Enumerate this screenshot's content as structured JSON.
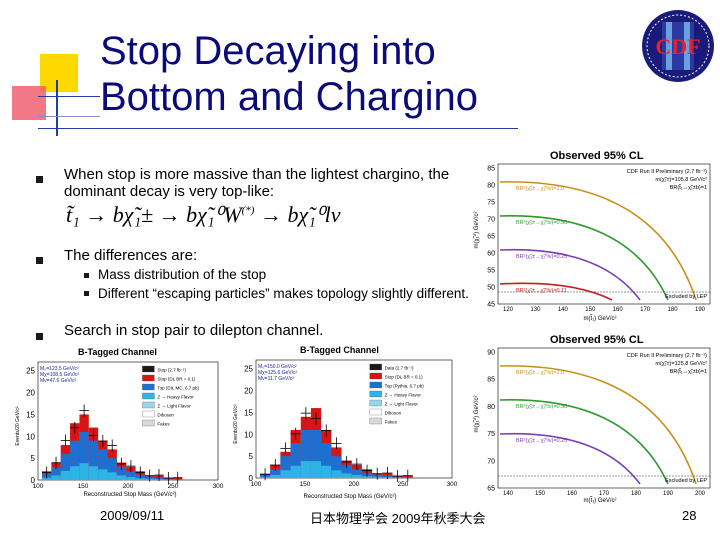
{
  "slide": {
    "title_line1": "Stop Decaying into",
    "title_line2": "Bottom and Chargino",
    "bullet1": "When stop is more massive than the lightest chargino, the dominant decay is very top-like:",
    "bullet2": "The differences are:",
    "sub1": "Mass distribution of the stop",
    "sub2": "Different “escaping particles” makes topology slightly different.",
    "bullet3": "Search in stop pair to dilepton channel."
  },
  "footer": {
    "date": "2009/09/11",
    "venue": "日本物理学会 2009年秋季大会",
    "page": "28"
  },
  "logo": {
    "text": "CDF"
  },
  "formula": {
    "p1": "t̃₁ → bχ̃₁± → bχ̃₁⁰W",
    "sup": "(*)",
    "p2": "→ bχ̃₁⁰lν"
  },
  "histograms": [
    {
      "title": "B-Tagged Channel",
      "ylabel": "Events/20 GeV/c²",
      "xlabel": "Reconstructed Stop Mass (GeV/c²)",
      "info": [
        "M₀=123.5 GeV/c²",
        "Mχ=108.5 GeV/c²",
        "Mν=47.6 GeV/c²"
      ],
      "ylim": [
        0,
        27
      ],
      "xlim": [
        100,
        300
      ],
      "yticks": [
        "0",
        "5",
        "10",
        "15",
        "20",
        "25"
      ],
      "xticks": [
        "100",
        "150",
        "200",
        "250",
        "300"
      ],
      "legend": [
        {
          "label": "Stop (2.7 fb⁻¹)",
          "color": "#1a1a1a"
        },
        {
          "label": "Stop (DL BR = 0.1)",
          "color": "#d81414"
        },
        {
          "label": "Top (DIL MC, 6.7 pb)",
          "color": "#1f6fd1"
        },
        {
          "label": "Z → Heavy Flavor",
          "color": "#2db4e6"
        },
        {
          "label": "Z → Light Flavor",
          "color": "#9ad4f0"
        },
        {
          "label": "Diboson",
          "color": "#ffffff"
        },
        {
          "label": "Fakes",
          "color": "#d8d8d8"
        }
      ],
      "bins_top": [
        2,
        4,
        8,
        13,
        15,
        12,
        9,
        7,
        4,
        3,
        2,
        1,
        1,
        0.5,
        0.5
      ],
      "bins_blue": [
        1.5,
        3,
        6,
        9,
        11,
        9,
        7,
        5,
        3,
        2,
        1.2,
        0.8,
        0.6,
        0.3,
        0.2
      ]
    },
    {
      "title": "B-Tagged Channel",
      "ylabel": "Events/20 GeV/c²",
      "xlabel": "Reconstructed Stop Mass (GeV/c²)",
      "info": [
        "M₀=150.0 GeV/c²",
        "Mχ=125.6 GeV/c²",
        "Mν=11.7 GeV/c²"
      ],
      "ylim": [
        0,
        27
      ],
      "xlim": [
        100,
        300
      ],
      "yticks": [
        "0",
        "5",
        "10",
        "15",
        "20",
        "25"
      ],
      "xticks": [
        "100",
        "150",
        "200",
        "250",
        "300"
      ],
      "legend": [
        {
          "label": "Data (2.7 fb⁻¹)",
          "color": "#1a1a1a"
        },
        {
          "label": "Stop (DL BR = 0.1)",
          "color": "#d81414"
        },
        {
          "label": "Top (Pythia, 6.7 pb)",
          "color": "#1f6fd1"
        },
        {
          "label": "Z → Heavy Flavor",
          "color": "#2db4e6"
        },
        {
          "label": "Z → Light Flavor",
          "color": "#9ad4f0"
        },
        {
          "label": "Diboson",
          "color": "#ffffff"
        },
        {
          "label": "Fakes",
          "color": "#d8d8d8"
        }
      ],
      "bins_top": [
        1,
        3,
        6,
        11,
        14,
        16,
        11,
        7,
        4,
        3,
        2,
        1,
        1,
        0.5,
        0.5
      ],
      "bins_blue": [
        0.8,
        2,
        5,
        8,
        11,
        11,
        8,
        5,
        3,
        2,
        1.2,
        0.8,
        0.6,
        0.3,
        0.2
      ]
    }
  ],
  "exclusion_plots": [
    {
      "title": "Observed 95% CL",
      "header": "CDF Run II Preliminary (2.7 fb⁻¹)",
      "mass_label": "m(χ̃₁±)=105.8 GeV/c²",
      "br_label": "BR(t̃₁→χ̃₁±b)=1",
      "ylabel": "m(χ̃₁⁰) GeV/c²",
      "xlabel": "m(t̃₁) GeV/c²",
      "yticks": [
        "45",
        "50",
        "55",
        "60",
        "65",
        "70",
        "75",
        "80",
        "85"
      ],
      "xticks": [
        "120",
        "130",
        "140",
        "150",
        "160",
        "170",
        "180",
        "190"
      ],
      "curves": [
        {
          "label": "BR²(χ̃₁±→χ̃₁⁰lν)=1.0",
          "color": "#c8901a"
        },
        {
          "label": "BR²(χ̃₁±→χ̃₁⁰lν)=0.50",
          "color": "#2f9a2f"
        },
        {
          "label": "BR²(χ̃₁±→χ̃₁⁰lν)=0.25",
          "color": "#7a3fb0"
        },
        {
          "label": "BR²(χ̃₁±→χ̃₁⁰lν)=0.11",
          "color": "#c02020"
        }
      ],
      "excluded": "Excluded by LEP"
    },
    {
      "title": "Observed 95% CL",
      "header": "CDF Run II Preliminary (2.7 fb⁻¹)",
      "mass_label": "m(χ̃₁±)=125.8 GeV/c²",
      "br_label": "BR(t̃₁→χ̃₁±b)=1",
      "ylabel": "m(χ̃₁⁰) GeV/c²",
      "xlabel": "m(t̃₁) GeV/c²",
      "yticks": [
        "65",
        "70",
        "75",
        "80",
        "85",
        "90"
      ],
      "xticks": [
        "140",
        "150",
        "160",
        "170",
        "180",
        "190",
        "200"
      ],
      "curves": [
        {
          "label": "BR²(χ̃₁±→χ̃₁⁰lν)=1.0",
          "color": "#c8901a"
        },
        {
          "label": "BR²(χ̃₁±→χ̃₁⁰lν)=0.50",
          "color": "#2f9a2f"
        },
        {
          "label": "BR²(χ̃₁±→χ̃₁⁰lν)=0.25",
          "color": "#7a3fb0"
        }
      ],
      "excluded": "Excluded by LEP"
    }
  ],
  "colors": {
    "title": "#0a0a7a",
    "deco_yellow": "#ffd800",
    "deco_red": "#e8202a",
    "deco_blue": "#2040a0"
  }
}
